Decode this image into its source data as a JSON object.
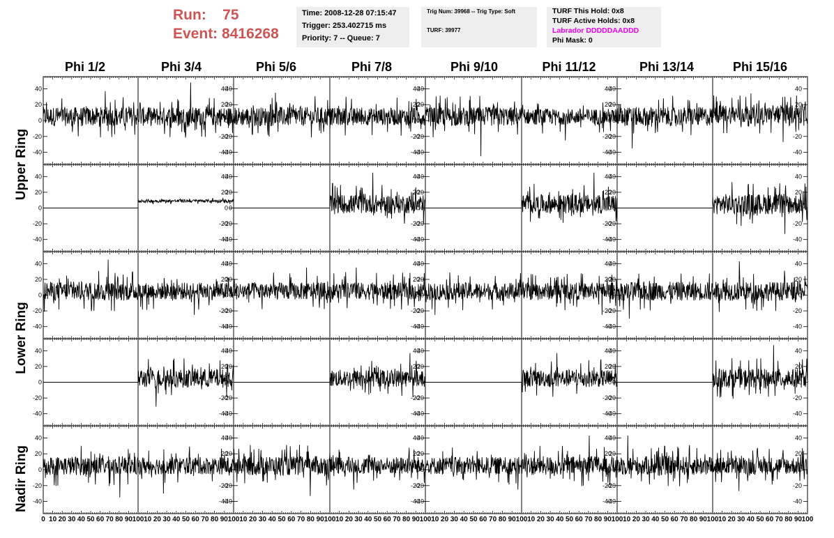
{
  "header": {
    "run_label": "Run:",
    "run_value": "75",
    "event_label": "Event:",
    "event_value": "8416268",
    "time": "Time: 2008-12-28 07:15:47",
    "trigger": "Trigger: 253.402715 ms",
    "priority": "Priority: 7 -- Queue: 7",
    "trig_num": "Trig Num: 39968 -- Trig Type: Soft",
    "turf": "TURF: 39977",
    "turf_this_hold": "TURF This Hold: 0x8",
    "turf_active_holds": "TURF Active Holds: 0x8",
    "labrador": "Labrador DDDDDAADDD",
    "phi_mask": "Phi Mask: 0"
  },
  "colors": {
    "red_text": "#cc5555",
    "magenta_text": "#ee00ee",
    "panel_bg": "#eeeeee",
    "trace": "#000000"
  },
  "columns": [
    "Phi 1/2",
    "Phi 3/4",
    "Phi 5/6",
    "Phi 7/8",
    "Phi 9/10",
    "Phi 11/12",
    "Phi 13/14",
    "Phi 15/16"
  ],
  "ring_labels": {
    "upper": "Upper Ring",
    "lower": "Lower Ring",
    "nadir": "Nadir Ring"
  },
  "chart_data": {
    "type": "line",
    "x_ticks": [
      "0",
      "10",
      "20",
      "30",
      "40",
      "50",
      "60",
      "70",
      "80",
      "90",
      "100"
    ],
    "y_ticks": [
      "-40",
      "-20",
      "0",
      "20",
      "40"
    ],
    "xlim": [
      0,
      100
    ],
    "ylim": [
      -50,
      50
    ],
    "rows": [
      {
        "ring": "upper",
        "channels": [
          {
            "mean": 5,
            "amp": 12,
            "spike": 32
          },
          {
            "mean": 5,
            "amp": 12,
            "spike": 48
          },
          {
            "mean": 5,
            "amp": 12,
            "spike": 30
          },
          {
            "mean": 5,
            "amp": 11,
            "spike": 25
          },
          {
            "mean": 5,
            "amp": 12,
            "spike": 50
          },
          {
            "mean": 5,
            "amp": 10,
            "spike": 30
          },
          {
            "mean": 5,
            "amp": 12,
            "spike": 40
          },
          {
            "mean": 8,
            "amp": 12,
            "spike": 35
          }
        ]
      },
      {
        "ring": "upper",
        "channels": [
          {
            "mean": 0,
            "amp": 0,
            "spike": 0
          },
          {
            "mean": 9,
            "amp": 2,
            "spike": 0
          },
          {
            "mean": 0,
            "amp": 0,
            "spike": 0
          },
          {
            "mean": 5,
            "amp": 12,
            "spike": 40
          },
          {
            "mean": 0,
            "amp": 0,
            "spike": 0
          },
          {
            "mean": 5,
            "amp": 12,
            "spike": 40
          },
          {
            "mean": 0,
            "amp": 0,
            "spike": 0
          },
          {
            "mean": 5,
            "amp": 13,
            "spike": 38
          }
        ]
      },
      {
        "ring": "lower",
        "channels": [
          {
            "mean": 5,
            "amp": 12,
            "spike": 40
          },
          {
            "mean": 5,
            "amp": 11,
            "spike": 30
          },
          {
            "mean": 5,
            "amp": 11,
            "spike": 30
          },
          {
            "mean": 5,
            "amp": 11,
            "spike": 30
          },
          {
            "mean": 5,
            "amp": 11,
            "spike": 30
          },
          {
            "mean": 5,
            "amp": 11,
            "spike": 30
          },
          {
            "mean": 5,
            "amp": 12,
            "spike": 35
          },
          {
            "mean": 5,
            "amp": 12,
            "spike": 38
          }
        ]
      },
      {
        "ring": "lower",
        "channels": [
          {
            "mean": 0,
            "amp": 0,
            "spike": 0
          },
          {
            "mean": 5,
            "amp": 12,
            "spike": 36
          },
          {
            "mean": 0,
            "amp": 0,
            "spike": 0
          },
          {
            "mean": 5,
            "amp": 11,
            "spike": 32
          },
          {
            "mean": 0,
            "amp": 0,
            "spike": 0
          },
          {
            "mean": 5,
            "amp": 11,
            "spike": 32
          },
          {
            "mean": 0,
            "amp": 0,
            "spike": 0
          },
          {
            "mean": 5,
            "amp": 12,
            "spike": 42
          }
        ]
      },
      {
        "ring": "nadir",
        "channels": [
          {
            "mean": 5,
            "amp": 12,
            "spike": 40
          },
          {
            "mean": 5,
            "amp": 11,
            "spike": 35
          },
          {
            "mean": 5,
            "amp": 12,
            "spike": 38
          },
          {
            "mean": 5,
            "amp": 11,
            "spike": 30
          },
          {
            "mean": 5,
            "amp": 11,
            "spike": 30
          },
          {
            "mean": 5,
            "amp": 12,
            "spike": 38
          },
          {
            "mean": 5,
            "amp": 12,
            "spike": 38
          },
          {
            "mean": 5,
            "amp": 11,
            "spike": 32
          }
        ]
      }
    ]
  }
}
